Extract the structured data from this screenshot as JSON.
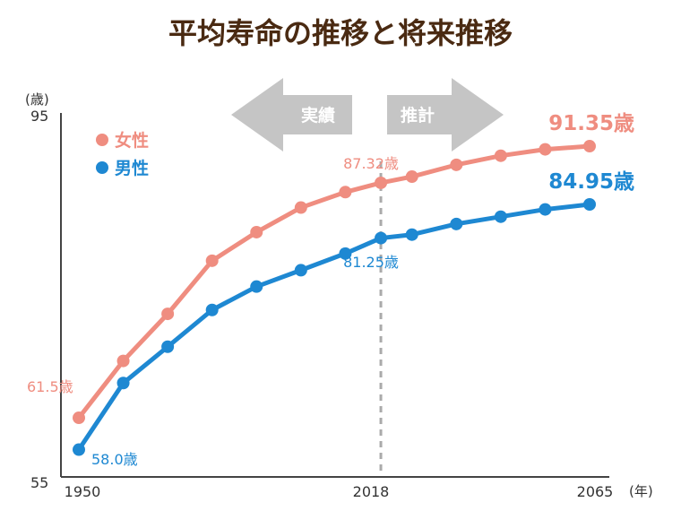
{
  "title": "平均寿命の推移と将来推移",
  "chart_data": {
    "type": "line",
    "title": "平均寿命の推移と将来推移",
    "xlabel": "(年)",
    "ylabel": "(歳)",
    "x_tick_labels": [
      "1950",
      "2018",
      "2065"
    ],
    "y_tick_labels": [
      "95",
      "55"
    ],
    "xlim": [
      1950,
      2065
    ],
    "ylim": [
      55,
      95
    ],
    "divider_year": 2018,
    "regions": {
      "actual": "実績",
      "projection": "推計"
    },
    "grid": false,
    "legend_position": "top-left",
    "x": [
      1950,
      1955,
      1960,
      1965,
      1970,
      1975,
      1980,
      1985,
      1990,
      1995,
      2000,
      2005,
      2010,
      2015,
      2018,
      2020,
      2025,
      2030,
      2035,
      2040,
      2045,
      2050,
      2055,
      2060,
      2065
    ],
    "series": [
      {
        "name": "女性",
        "color": "#ef8d80",
        "values": [
          61.5,
          null,
          67.75,
          null,
          72.92,
          null,
          78.76,
          null,
          81.9,
          null,
          84.6,
          null,
          86.3,
          null,
          87.32,
          null,
          88.0,
          null,
          89.3,
          null,
          90.3,
          null,
          91.0,
          null,
          91.35
        ]
      },
      {
        "name": "男性",
        "color": "#1e88d2",
        "values": [
          58.0,
          null,
          65.32,
          null,
          69.31,
          null,
          73.35,
          null,
          75.92,
          null,
          77.72,
          null,
          79.55,
          null,
          81.25,
          null,
          81.63,
          null,
          82.8,
          null,
          83.6,
          null,
          84.4,
          null,
          84.95
        ]
      }
    ],
    "annotations": {
      "female_start": "61.5歳",
      "male_start": "58.0歳",
      "female_2018": "87.32歳",
      "male_2018": "81.25歳",
      "female_end": "91.35歳",
      "male_end": "84.95歳"
    }
  },
  "colors": {
    "title": "#4a2a12",
    "arrow": "#c5c5c5",
    "divider": "#aaaaaa",
    "axis": "#444444"
  }
}
